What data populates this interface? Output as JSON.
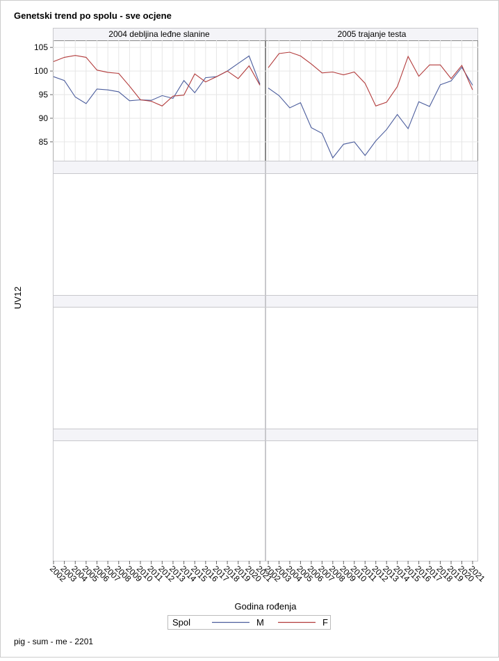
{
  "title": "Genetski trend po spolu - sve ocjene",
  "y_label": "UV12",
  "x_label": "Godina rođenja",
  "legend_title": "Spol",
  "footnote": "pig - sum - me - 2201",
  "chart_data": [
    {
      "type": "line",
      "title": "2004 debljina leđne slanine",
      "categories": [
        "2002",
        "2003",
        "2004",
        "2005",
        "2006",
        "2007",
        "2008",
        "2009",
        "2010",
        "2011",
        "2012",
        "2013",
        "2014",
        "2015",
        "2016",
        "2017",
        "2018",
        "2019",
        "2020",
        "2021"
      ],
      "series": [
        {
          "name": "M",
          "color": "#4a5c9c",
          "values": [
            98.8,
            98.0,
            94.5,
            93.1,
            96.2,
            96.0,
            95.6,
            93.7,
            93.9,
            93.8,
            94.8,
            94.2,
            98.0,
            95.4,
            98.6,
            98.8,
            100.0,
            101.6,
            103.2,
            97.2
          ]
        },
        {
          "name": "F",
          "color": "#b23a3a",
          "values": [
            102.0,
            102.9,
            103.3,
            102.9,
            100.2,
            99.7,
            99.5,
            96.8,
            93.9,
            93.6,
            92.6,
            94.7,
            94.9,
            99.4,
            97.7,
            98.8,
            100.0,
            98.4,
            101.1,
            97.0
          ]
        }
      ],
      "ylim": [
        81,
        106.5
      ],
      "yticks": [
        85,
        90,
        95,
        100,
        105
      ],
      "grid": true
    },
    {
      "type": "line",
      "title": "2005 trajanje testa",
      "categories": [
        "2002",
        "2003",
        "2004",
        "2005",
        "2006",
        "2007",
        "2008",
        "2009",
        "2010",
        "2011",
        "2012",
        "2013",
        "2014",
        "2015",
        "2016",
        "2017",
        "2018",
        "2019",
        "2020",
        "2021"
      ],
      "series": [
        {
          "name": "M",
          "color": "#4a5c9c",
          "values": [
            96.4,
            94.8,
            92.2,
            93.3,
            88.0,
            86.8,
            81.6,
            84.5,
            85.0,
            82.1,
            85.2,
            87.6,
            90.8,
            87.8,
            93.5,
            92.5,
            97.1,
            97.9,
            100.8,
            97.0
          ]
        },
        {
          "name": "F",
          "color": "#b23a3a",
          "values": [
            100.7,
            103.7,
            104.0,
            103.2,
            101.5,
            99.6,
            99.8,
            99.2,
            99.8,
            97.4,
            92.6,
            93.4,
            96.7,
            103.1,
            98.9,
            101.3,
            101.3,
            98.4,
            101.2,
            96.0
          ]
        }
      ],
      "ylim": [
        81,
        106.5
      ],
      "yticks": [
        85,
        90,
        95,
        100,
        105
      ],
      "grid": true
    }
  ]
}
